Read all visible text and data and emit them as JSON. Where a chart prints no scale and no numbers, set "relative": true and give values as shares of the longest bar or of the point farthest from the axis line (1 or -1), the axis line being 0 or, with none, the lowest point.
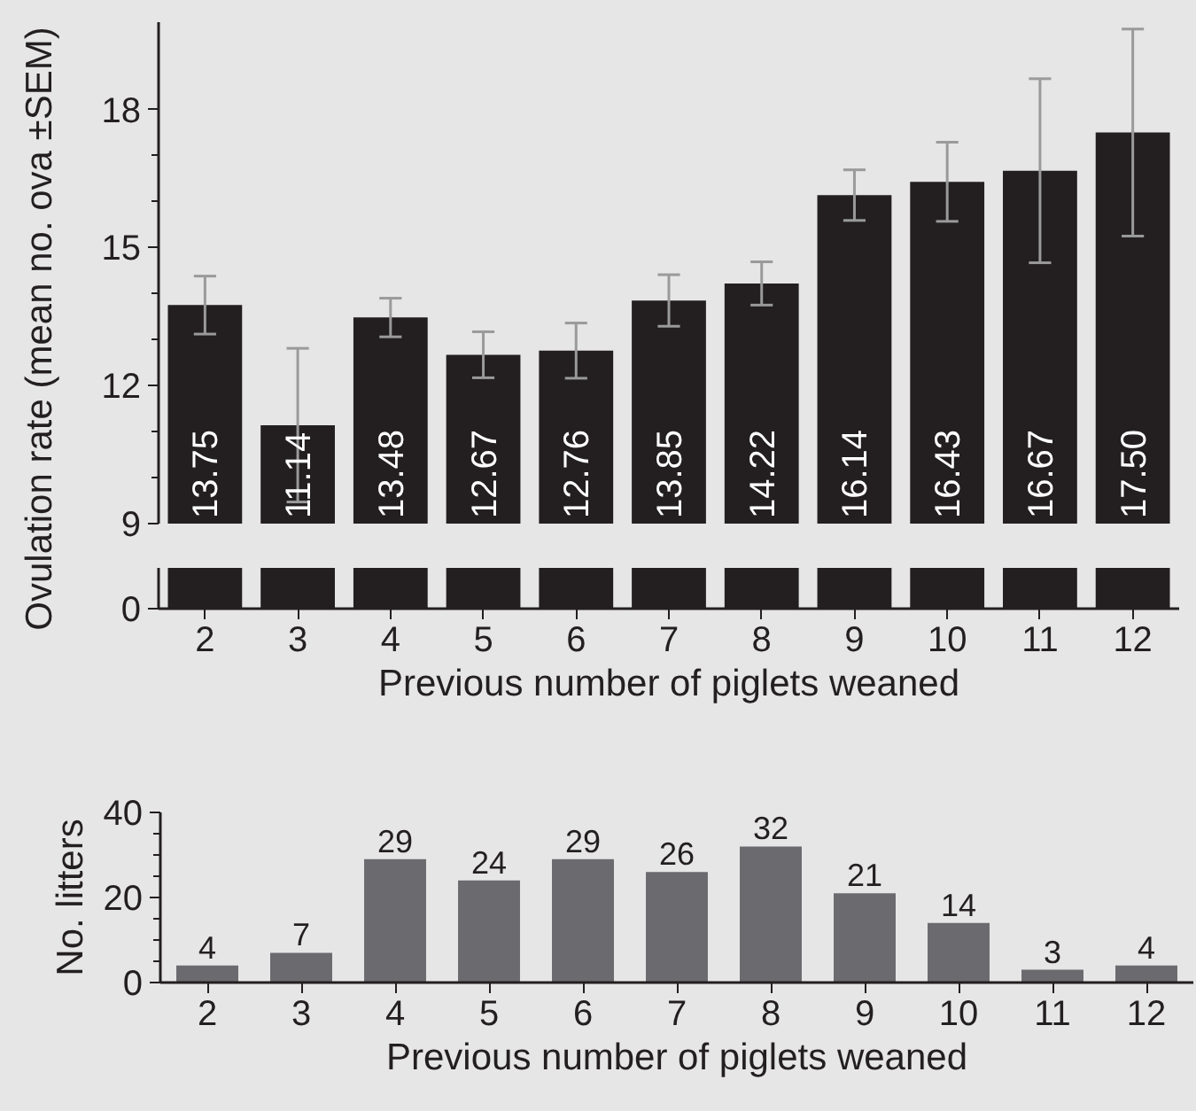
{
  "chart_data": [
    {
      "type": "bar",
      "ylabel": "Ovulation rate (mean no. ova ±SEM)",
      "categories": [
        "2",
        "3",
        "4",
        "5",
        "6",
        "7",
        "8",
        "9",
        "10",
        "11",
        "12"
      ],
      "values": [
        13.75,
        11.14,
        13.48,
        12.67,
        12.76,
        13.85,
        14.22,
        16.14,
        16.43,
        16.67,
        17.5
      ],
      "value_labels": [
        "13.75",
        "11.14",
        "13.48",
        "12.67",
        "12.76",
        "13.85",
        "14.22",
        "16.14",
        "16.43",
        "16.67",
        "17.50"
      ],
      "errors": [
        0.63,
        1.67,
        0.42,
        0.5,
        0.6,
        0.56,
        0.47,
        0.55,
        0.86,
        2.0,
        2.25
      ],
      "color": "#231f20",
      "ylim": [
        9,
        19.9
      ],
      "yticks": [
        9,
        {
          "value": 10,
          "label": null
        },
        {
          "value": 11,
          "label": null
        },
        12,
        {
          "value": 13,
          "label": null
        },
        {
          "value": 14,
          "label": null
        },
        15,
        {
          "value": 16,
          "label": null
        },
        {
          "value": 17,
          "label": null
        },
        18
      ],
      "tick_labels": "y",
      "grid": false
    },
    {
      "type": "bar",
      "xlabel": "Previous number of piglets weaned",
      "categories": [
        "2",
        "3",
        "4",
        "5",
        "6",
        "7",
        "8",
        "9",
        "10",
        "11",
        "12"
      ],
      "values": [
        1,
        1,
        1,
        1,
        1,
        1,
        1,
        1,
        1,
        1,
        1
      ],
      "relative": true,
      "annotations": [
        "0"
      ],
      "color": "#231f20"
    },
    {
      "type": "bar",
      "ylabel": "No. litters",
      "xlabel": "Previous number of piglets weaned",
      "categories": [
        "2",
        "3",
        "4",
        "5",
        "6",
        "7",
        "8",
        "9",
        "10",
        "11",
        "12"
      ],
      "values": [
        4,
        7,
        29,
        24,
        29,
        26,
        32,
        21,
        14,
        3,
        4
      ],
      "color": "#6b6b6f",
      "ylim": [
        0,
        40
      ],
      "yticks": [
        0,
        {
          "value": 5,
          "label": null
        },
        {
          "value": 10,
          "label": null
        },
        {
          "value": 15,
          "label": null
        },
        20,
        {
          "value": 25,
          "label": null
        },
        {
          "value": 30,
          "label": null
        },
        {
          "value": 35,
          "label": null
        },
        40
      ],
      "data_labels": true,
      "grid": false
    }
  ]
}
